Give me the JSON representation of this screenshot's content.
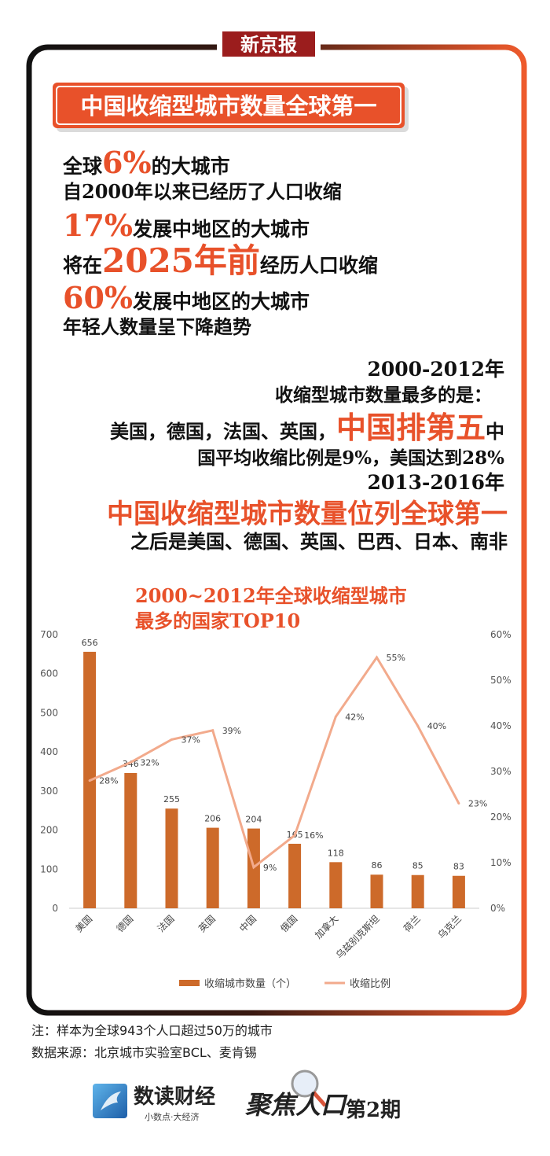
{
  "brand": "新京报",
  "headline": "中国收缩型城市数量全球第一",
  "stats": [
    [
      "全球",
      "6%",
      "的大城市"
    ],
    [
      "自2000年以来已经历了人口收缩"
    ],
    [
      "17%",
      "发展中地区的大城市"
    ],
    [
      "将在",
      "2025年前",
      "经历人口收缩"
    ],
    [
      "60%",
      "发展中地区的大城市"
    ],
    [
      "年轻人数量呈下降趋势"
    ]
  ],
  "summary": [
    [
      "2000-2012年"
    ],
    [
      "收缩型城市数量最多的是："
    ],
    [
      "美国，德国，法国、英国，",
      "中国排第五",
      "中"
    ],
    [
      "国平均收缩比例是9%，美国达到28%"
    ],
    [
      "2013-2016年"
    ],
    [
      "中国收缩型城市数量位列全球第一"
    ],
    [
      "之后是美国、德国、英国、巴西、日本、南非"
    ]
  ],
  "chart_data": {
    "type": "bar",
    "title": "2000~2012年全球收缩型城市",
    "subtitle": "最多的国家TOP10",
    "categories": [
      "美国",
      "德国",
      "法国",
      "英国",
      "中国",
      "俄国",
      "加拿大",
      "乌兹别克斯坦",
      "荷兰",
      "乌克兰"
    ],
    "series": [
      {
        "name": "收缩城市数量（个）",
        "type": "bar",
        "color": "#cd6a2a",
        "values": [
          656,
          346,
          255,
          206,
          204,
          165,
          118,
          86,
          85,
          83
        ]
      },
      {
        "name": "收缩比例",
        "type": "line",
        "axis": "y2",
        "color": "#f2aa8c",
        "values": [
          28,
          32,
          37,
          39,
          9,
          16,
          42,
          55,
          40,
          23
        ],
        "value_labels": [
          "28%",
          "32%",
          "37%",
          "39%",
          "9%",
          "16%",
          "42%",
          "55%",
          "40%",
          "23%"
        ]
      }
    ],
    "ylim": [
      0,
      700
    ],
    "yticks": [
      0,
      100,
      200,
      300,
      400,
      500,
      600,
      700
    ],
    "y2lim": [
      0,
      60
    ],
    "y2ticks": [
      {
        "value": 0,
        "label": "0%"
      },
      {
        "value": 10,
        "label": "10%"
      },
      {
        "value": 20,
        "label": "20%"
      },
      {
        "value": 30,
        "label": "30%"
      },
      {
        "value": 40,
        "label": "40%"
      },
      {
        "value": 50,
        "label": "50%"
      },
      {
        "value": 60,
        "label": "60%"
      }
    ],
    "grid": false,
    "legend": "bottom"
  },
  "notes": [
    "注：样本为全球943个人口超过50万的城市",
    "数据来源：北京城市实验室BCL、麦肯锡"
  ],
  "footer": {
    "logo_name": "数读财经",
    "logo_slogan": "小数点·大经济",
    "column": "聚焦人口",
    "issue": "第2期"
  }
}
